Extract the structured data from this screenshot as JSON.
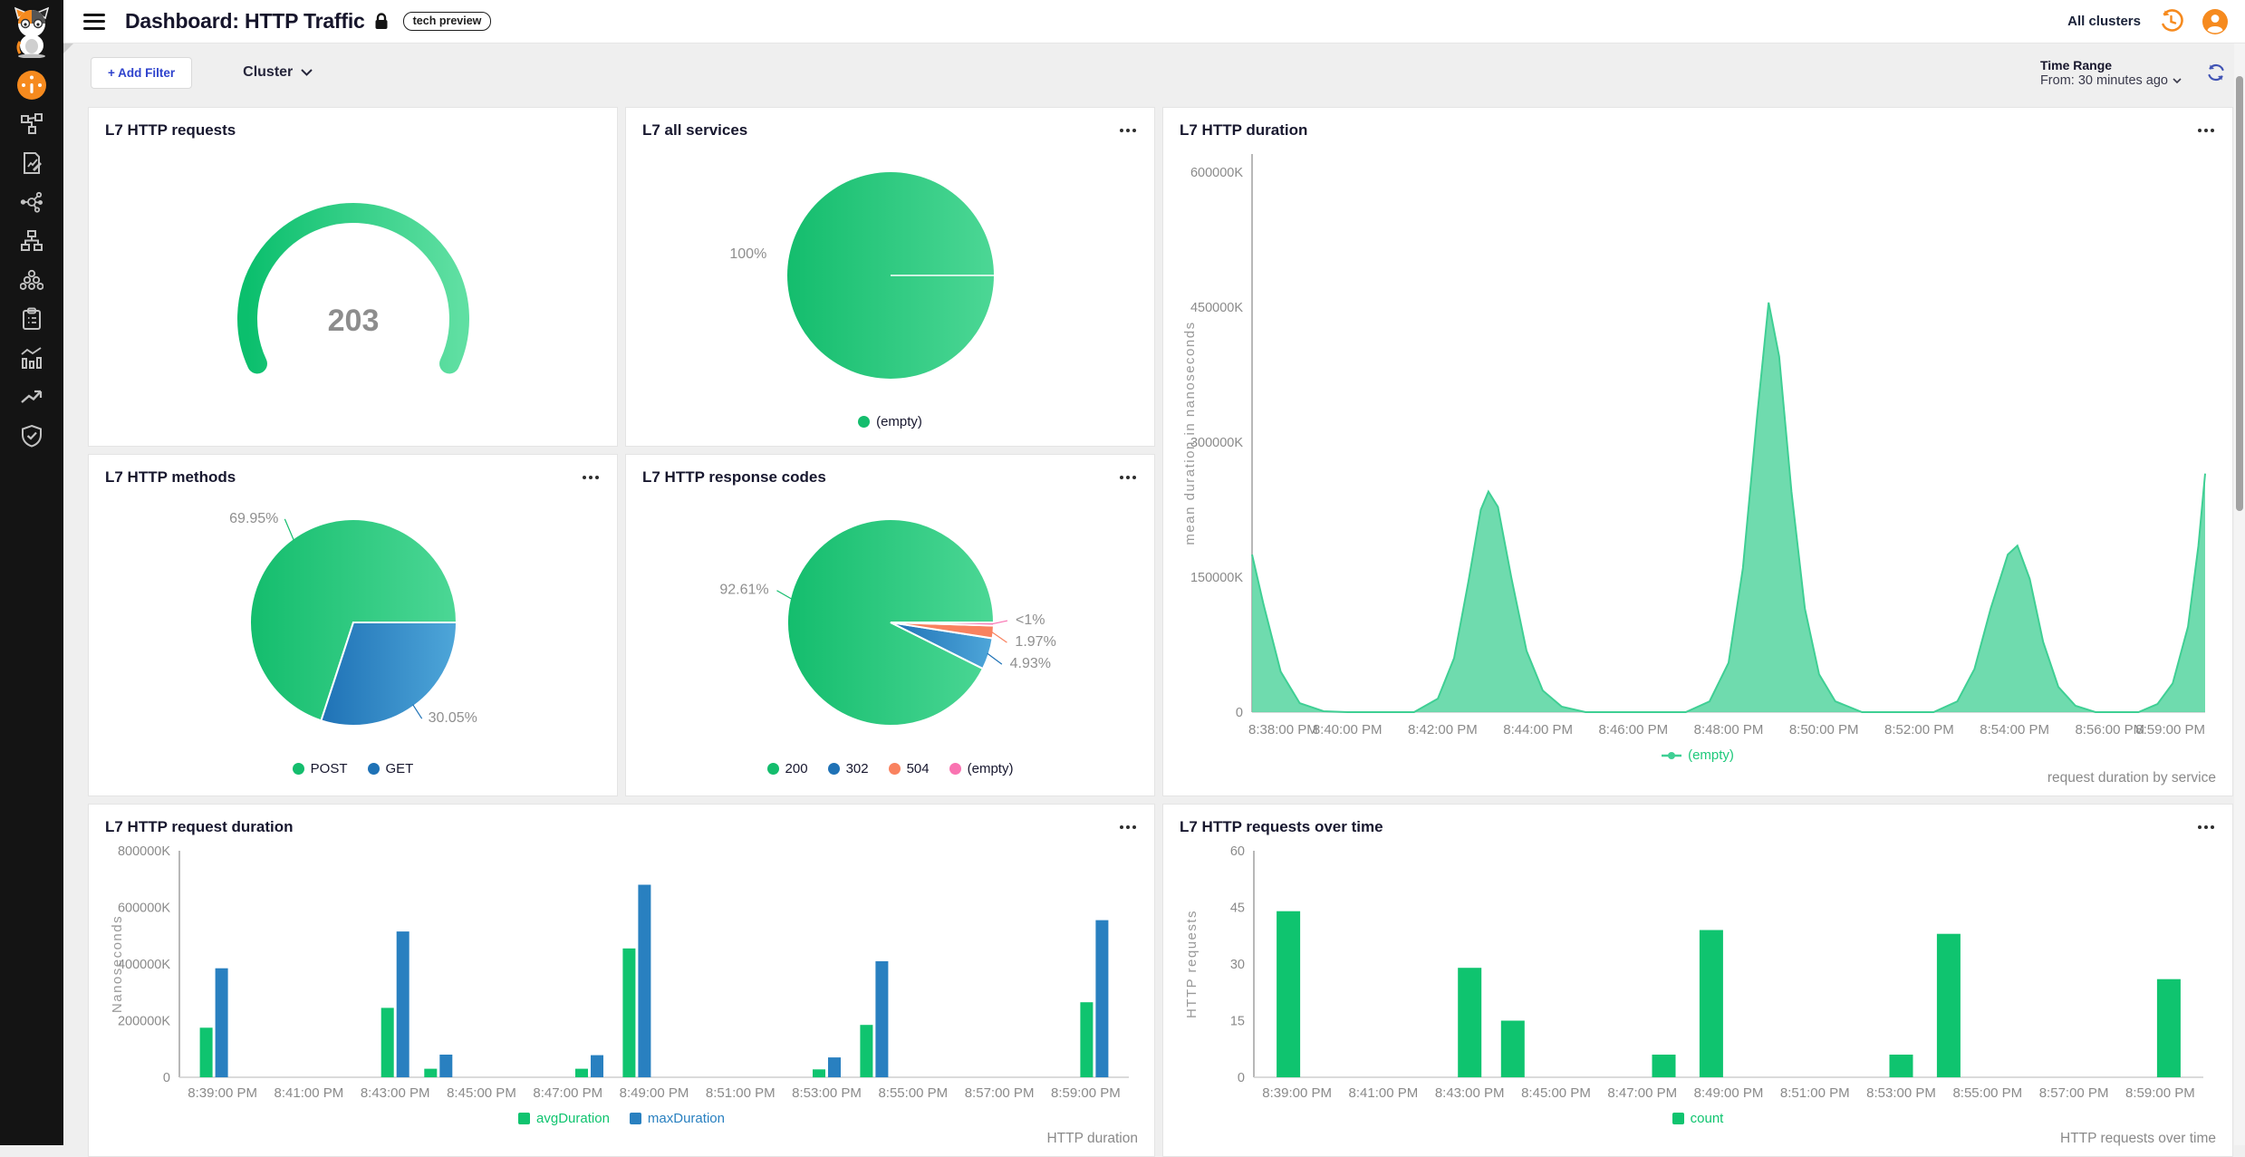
{
  "topbar": {
    "title": "Dashboard: HTTP Traffic",
    "badge": "tech preview",
    "clusters_label": "All clusters",
    "icons": [
      "menu-icon",
      "lock-icon",
      "history-icon",
      "user-avatar-icon"
    ]
  },
  "filterbar": {
    "add_filter_label": "+ Add Filter",
    "cluster_label": "Cluster",
    "time_range_label": "Time Range",
    "time_range_value": "From: 30 minutes ago",
    "icons": [
      "chevron-down-icon",
      "refresh-icon"
    ]
  },
  "sidebar": {
    "items": [
      {
        "icon": "calico-cat-logo"
      },
      {
        "icon": "dashboard-gauge-icon",
        "active": true
      },
      {
        "icon": "network-topology-icon"
      },
      {
        "icon": "policy-document-icon"
      },
      {
        "icon": "service-graph-icon"
      },
      {
        "icon": "sitemap-icon"
      },
      {
        "icon": "cluster-nodes-icon"
      },
      {
        "icon": "clipboard-icon"
      },
      {
        "icon": "statistics-icon"
      },
      {
        "icon": "trend-icon"
      },
      {
        "icon": "shield-check-icon"
      }
    ]
  },
  "colors": {
    "brand_orange": "#F68A1E",
    "green": "#1EC97B",
    "blue": "#2E86C4",
    "salmon": "#F9825F",
    "pink": "#F973B1",
    "accent_blue_text": "#2F43CD",
    "axis_text": "#8a8a8a"
  },
  "panels": [
    {
      "title": "L7 HTTP requests",
      "chart_data": {
        "type": "gauge",
        "value": "203",
        "color_start": "#0bbf6d",
        "color_end": "#5fdfa2",
        "value_color": "#8d8d8d"
      }
    },
    {
      "title": "L7 all services",
      "chart_data": {
        "type": "pie",
        "slices": [
          {
            "label": "(empty)",
            "pct": 100,
            "pct_label": "100%",
            "color": "#14bd6d",
            "color2": "#4cd795"
          }
        ]
      }
    },
    {
      "title": "L7 HTTP duration",
      "caption": "request duration by service",
      "chart_data": {
        "type": "area",
        "title": "L7 HTTP duration",
        "ylabel": "mean duration in nanoseconds",
        "ylim": [
          0,
          620000
        ],
        "yticks": [
          0,
          150000,
          300000,
          450000,
          600000
        ],
        "ytick_labels": [
          "0",
          "150000K",
          "300000K",
          "450000K",
          "600000K"
        ],
        "xticks": [
          "8:38:00 PM",
          "8:40:00 PM",
          "8:42:00 PM",
          "8:44:00 PM",
          "8:46:00 PM",
          "8:48:00 PM",
          "8:50:00 PM",
          "8:52:00 PM",
          "8:54:00 PM",
          "8:56:00 PM",
          "8:59:00 PM"
        ],
        "series_name": "(empty)",
        "line_color": "#3fcf94",
        "fill_color": "#63d8a7",
        "unit": "K (nanoseconds, thousands)",
        "points": [
          [
            0,
            175000
          ],
          [
            0.12,
            120000
          ],
          [
            0.3,
            45000
          ],
          [
            0.5,
            10000
          ],
          [
            0.75,
            1000
          ],
          [
            1.0,
            0
          ],
          [
            1.7,
            0
          ],
          [
            1.95,
            15000
          ],
          [
            2.12,
            60000
          ],
          [
            2.27,
            145000
          ],
          [
            2.4,
            225000
          ],
          [
            2.48,
            245000
          ],
          [
            2.58,
            228000
          ],
          [
            2.72,
            150000
          ],
          [
            2.88,
            68000
          ],
          [
            3.05,
            24000
          ],
          [
            3.25,
            6000
          ],
          [
            3.5,
            0
          ],
          [
            4.55,
            0
          ],
          [
            4.8,
            12000
          ],
          [
            5.0,
            55000
          ],
          [
            5.15,
            160000
          ],
          [
            5.3,
            330000
          ],
          [
            5.42,
            455000
          ],
          [
            5.53,
            395000
          ],
          [
            5.66,
            245000
          ],
          [
            5.8,
            115000
          ],
          [
            5.95,
            42000
          ],
          [
            6.12,
            12000
          ],
          [
            6.4,
            0
          ],
          [
            7.15,
            0
          ],
          [
            7.4,
            12000
          ],
          [
            7.58,
            48000
          ],
          [
            7.75,
            115000
          ],
          [
            7.93,
            175000
          ],
          [
            8.03,
            185000
          ],
          [
            8.16,
            148000
          ],
          [
            8.3,
            78000
          ],
          [
            8.46,
            28000
          ],
          [
            8.64,
            7000
          ],
          [
            8.85,
            0
          ],
          [
            9.3,
            0
          ],
          [
            9.5,
            9000
          ],
          [
            9.66,
            32000
          ],
          [
            9.82,
            95000
          ],
          [
            9.93,
            185000
          ],
          [
            10,
            265000
          ]
        ]
      }
    },
    {
      "title": "L7 HTTP methods",
      "chart_data": {
        "type": "pie",
        "slices": [
          {
            "label": "POST",
            "pct": 69.95,
            "pct_label": "69.95%",
            "color": "#14bd6d",
            "color2": "#4cd795",
            "show_label": true
          },
          {
            "label": "GET",
            "pct": 30.05,
            "pct_label": "30.05%",
            "color": "#1f72b6",
            "color2": "#4ea6d9",
            "show_label": true
          }
        ]
      }
    },
    {
      "title": "L7 HTTP response codes",
      "chart_data": {
        "type": "pie",
        "slices": [
          {
            "label": "200",
            "pct": 92.61,
            "pct_label": "92.61%",
            "color": "#14bd6d",
            "color2": "#4cd795",
            "show_label": true
          },
          {
            "label": "302",
            "pct": 4.93,
            "pct_label": "4.93%",
            "color": "#1f72b6",
            "color2": "#4ea6d9",
            "show_label": true
          },
          {
            "label": "504",
            "pct": 1.97,
            "pct_label": "1.97%",
            "color": "#f9825f",
            "color2": "#f9825f",
            "show_label": true
          },
          {
            "label": "(empty)",
            "pct": 0.49,
            "pct_label": "<1%",
            "color": "#f973b1",
            "color2": "#f973b1",
            "show_label": true
          }
        ]
      }
    },
    {
      "title": "L7 HTTP request duration",
      "caption": "HTTP duration",
      "chart_data": {
        "type": "bar",
        "ylabel": "Nanoseconds",
        "ylim": [
          0,
          800000
        ],
        "yticks": [
          0,
          200000,
          400000,
          600000,
          800000
        ],
        "ytick_labels": [
          "0",
          "200000K",
          "400000K",
          "600000K",
          "800000K"
        ],
        "xticks": [
          "8:39:00 PM",
          "8:41:00 PM",
          "8:43:00 PM",
          "8:45:00 PM",
          "8:47:00 PM",
          "8:49:00 PM",
          "8:51:00 PM",
          "8:53:00 PM",
          "8:55:00 PM",
          "8:57:00 PM",
          "8:59:00 PM"
        ],
        "tick_minutes": [
          1,
          3,
          5,
          7,
          9,
          11,
          13,
          15,
          17,
          19,
          21
        ],
        "x_domain_minutes": [
          0,
          22
        ],
        "group_centers_min": [
          0.8,
          5.0,
          6.0,
          9.5,
          10.6,
          15.0,
          16.1,
          21.2
        ],
        "unit": "K (nanoseconds, thousands)",
        "series": [
          {
            "name": "avgDuration",
            "color": "#0fc46f",
            "values": [
              175000,
              245000,
              30000,
              30000,
              455000,
              28000,
              185000,
              265000
            ]
          },
          {
            "name": "maxDuration",
            "color": "#2980c0",
            "values": [
              385000,
              515000,
              80000,
              78000,
              680000,
              70000,
              410000,
              555000
            ]
          }
        ]
      }
    },
    {
      "title": "L7 HTTP requests over time",
      "caption": "HTTP requests over time",
      "chart_data": {
        "type": "bar",
        "ylabel": "HTTP requests",
        "ylim": [
          0,
          60
        ],
        "yticks": [
          0,
          15,
          30,
          45,
          60
        ],
        "ytick_labels": [
          "0",
          "15",
          "30",
          "45",
          "60"
        ],
        "xticks": [
          "8:39:00 PM",
          "8:41:00 PM",
          "8:43:00 PM",
          "8:45:00 PM",
          "8:47:00 PM",
          "8:49:00 PM",
          "8:51:00 PM",
          "8:53:00 PM",
          "8:55:00 PM",
          "8:57:00 PM",
          "8:59:00 PM"
        ],
        "tick_minutes": [
          1,
          3,
          5,
          7,
          9,
          11,
          13,
          15,
          17,
          19,
          21
        ],
        "x_domain_minutes": [
          0,
          22
        ],
        "group_centers_min": [
          0.8,
          5.0,
          6.0,
          9.5,
          10.6,
          15.0,
          16.1,
          21.2
        ],
        "series": [
          {
            "name": "count",
            "color": "#0fc46f",
            "values": [
              44,
              29,
              15,
              6,
              39,
              6,
              38,
              26
            ]
          }
        ]
      }
    }
  ]
}
